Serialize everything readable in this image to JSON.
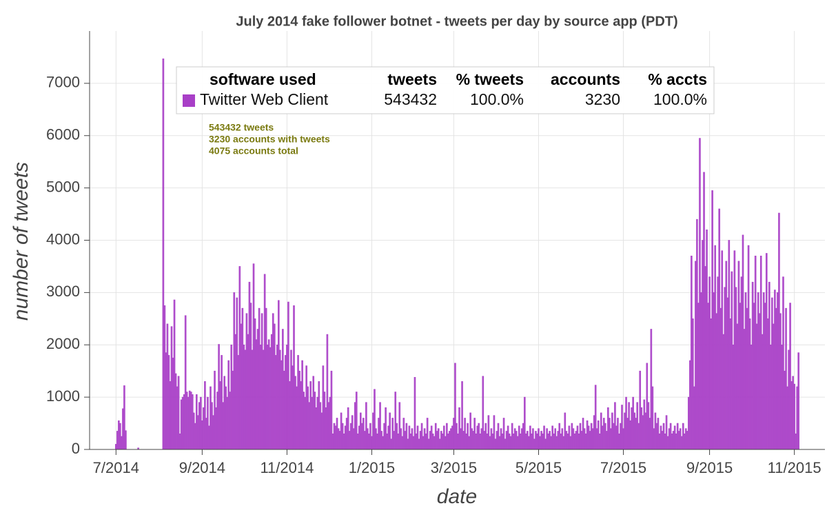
{
  "chart_data": {
    "type": "bar",
    "title": "July 2014 fake follower botnet - tweets per day by source app (PDT)",
    "x_label": "date",
    "y_label": "number of tweets",
    "annotations": [
      "543432 tweets",
      "3230 accounts with tweets",
      "4075 accounts total"
    ],
    "legend": {
      "columns": [
        "software used",
        "tweets",
        "% tweets",
        "accounts",
        "% accts"
      ],
      "rows": [
        [
          "Twitter Web Client",
          543432,
          "100.0%",
          3230,
          "100.0%"
        ]
      ]
    },
    "xlim": [
      -19,
      510
    ],
    "ylim": [
      0,
      8000
    ],
    "xticks": [
      {
        "value": 0,
        "label": "7/2014"
      },
      {
        "value": 62,
        "label": "9/2014"
      },
      {
        "value": 123,
        "label": "11/2014"
      },
      {
        "value": 184,
        "label": "1/2015"
      },
      {
        "value": 243,
        "label": "3/2015"
      },
      {
        "value": 304,
        "label": "5/2015"
      },
      {
        "value": 365,
        "label": "7/2015"
      },
      {
        "value": 427,
        "label": "9/2015"
      },
      {
        "value": 488,
        "label": "11/2015"
      }
    ],
    "yticks": [
      0,
      1000,
      2000,
      3000,
      4000,
      5000,
      6000,
      7000
    ],
    "grid": true,
    "series": [
      {
        "name": "Twitter Web Client",
        "color": "#a83fc7",
        "x": [
          0,
          1,
          2,
          3,
          4,
          5,
          6,
          7,
          8,
          9,
          10,
          11,
          12,
          13,
          14,
          15,
          16,
          17,
          18,
          19,
          20,
          21,
          22,
          23,
          24,
          25,
          26,
          27,
          28,
          29,
          30,
          31,
          32,
          33,
          34,
          35,
          36,
          37,
          38,
          39,
          40,
          41,
          42,
          43,
          44,
          45,
          46,
          47,
          48,
          49,
          50,
          51,
          52,
          53,
          54,
          55,
          56,
          57,
          58,
          59,
          60,
          61,
          62,
          63,
          64,
          65,
          66,
          67,
          68,
          69,
          70,
          71,
          72,
          73,
          74,
          75,
          76,
          77,
          78,
          79,
          80,
          81,
          82,
          83,
          84,
          85,
          86,
          87,
          88,
          89,
          90,
          91,
          92,
          93,
          94,
          95,
          96,
          97,
          98,
          99,
          100,
          101,
          102,
          103,
          104,
          105,
          106,
          107,
          108,
          109,
          110,
          111,
          112,
          113,
          114,
          115,
          116,
          117,
          118,
          119,
          120,
          121,
          122,
          123,
          124,
          125,
          126,
          127,
          128,
          129,
          130,
          131,
          132,
          133,
          134,
          135,
          136,
          137,
          138,
          139,
          140,
          141,
          142,
          143,
          144,
          145,
          146,
          147,
          148,
          149,
          150,
          151,
          152,
          153,
          154,
          155,
          156,
          157,
          158,
          159,
          160,
          161,
          162,
          163,
          164,
          165,
          166,
          167,
          168,
          169,
          170,
          171,
          172,
          173,
          174,
          175,
          176,
          177,
          178,
          179,
          180,
          181,
          182,
          183,
          184,
          185,
          186,
          187,
          188,
          189,
          190,
          191,
          192,
          193,
          194,
          195,
          196,
          197,
          198,
          199,
          200,
          201,
          202,
          203,
          204,
          205,
          206,
          207,
          208,
          209,
          210,
          211,
          212,
          213,
          214,
          215,
          216,
          217,
          218,
          219,
          220,
          221,
          222,
          223,
          224,
          225,
          226,
          227,
          228,
          229,
          230,
          231,
          232,
          233,
          234,
          235,
          236,
          237,
          238,
          239,
          240,
          241,
          242,
          243,
          244,
          245,
          246,
          247,
          248,
          249,
          250,
          251,
          252,
          253,
          254,
          255,
          256,
          257,
          258,
          259,
          260,
          261,
          262,
          263,
          264,
          265,
          266,
          267,
          268,
          269,
          270,
          271,
          272,
          273,
          274,
          275,
          276,
          277,
          278,
          279,
          280,
          281,
          282,
          283,
          284,
          285,
          286,
          287,
          288,
          289,
          290,
          291,
          292,
          293,
          294,
          295,
          296,
          297,
          298,
          299,
          300,
          301,
          302,
          303,
          304,
          305,
          306,
          307,
          308,
          309,
          310,
          311,
          312,
          313,
          314,
          315,
          316,
          317,
          318,
          319,
          320,
          321,
          322,
          323,
          324,
          325,
          326,
          327,
          328,
          329,
          330,
          331,
          332,
          333,
          334,
          335,
          336,
          337,
          338,
          339,
          340,
          341,
          342,
          343,
          344,
          345,
          346,
          347,
          348,
          349,
          350,
          351,
          352,
          353,
          354,
          355,
          356,
          357,
          358,
          359,
          360,
          361,
          362,
          363,
          364,
          365,
          366,
          367,
          368,
          369,
          370,
          371,
          372,
          373,
          374,
          375,
          376,
          377,
          378,
          379,
          380,
          381,
          382,
          383,
          384,
          385,
          386,
          387,
          388,
          389,
          390,
          391,
          392,
          393,
          394,
          395,
          396,
          397,
          398,
          399,
          400,
          401,
          402,
          403,
          404,
          405,
          406,
          407,
          408,
          409,
          410,
          411,
          412,
          413,
          414,
          415,
          416,
          417,
          418,
          419,
          420,
          421,
          422,
          423,
          424,
          425,
          426,
          427,
          428,
          429,
          430,
          431,
          432,
          433,
          434,
          435,
          436,
          437,
          438,
          439,
          440,
          441,
          442,
          443,
          444,
          445,
          446,
          447,
          448,
          449,
          450,
          451,
          452,
          453,
          454,
          455,
          456,
          457,
          458,
          459,
          460,
          461,
          462,
          463,
          464,
          465,
          466,
          467,
          468,
          469,
          470,
          471,
          472,
          473,
          474,
          475,
          476,
          477,
          478,
          479,
          480,
          481,
          482,
          483,
          484,
          485,
          486,
          487,
          488,
          489,
          490,
          491
        ],
        "values": [
          100,
          350,
          550,
          500,
          250,
          780,
          1220,
          360,
          0,
          0,
          0,
          0,
          0,
          0,
          0,
          0,
          30,
          0,
          0,
          0,
          0,
          0,
          0,
          0,
          0,
          0,
          0,
          0,
          0,
          0,
          0,
          0,
          0,
          0,
          7470,
          2750,
          1850,
          2400,
          1800,
          1300,
          2350,
          1750,
          2860,
          1450,
          1200,
          1400,
          300,
          950,
          1000,
          1050,
          2560,
          1100,
          1000,
          1120,
          1100,
          1050,
          700,
          500,
          1050,
          650,
          900,
          1000,
          550,
          800,
          1300,
          600,
          1000,
          450,
          1200,
          900,
          650,
          1500,
          800,
          1100,
          2010,
          1300,
          1800,
          900,
          1400,
          1200,
          1000,
          1700,
          1100,
          2000,
          1500,
          3000,
          2200,
          2900,
          1800,
          3500,
          2400,
          2700,
          2000,
          1900,
          2600,
          2200,
          3200,
          2800,
          1900,
          3550,
          2500,
          2100,
          2300,
          2700,
          2000,
          2600,
          1900,
          3350,
          2700,
          2000,
          2100,
          1950,
          2200,
          2600,
          2400,
          1800,
          2000,
          2850,
          1900,
          1700,
          2300,
          1500,
          1800,
          2000,
          2820,
          1300,
          1900,
          1600,
          2750,
          1400,
          1200,
          1800,
          1500,
          1300,
          1700,
          1100,
          1000,
          1600,
          1200,
          900,
          1300,
          1000,
          1400,
          1100,
          800,
          1000,
          1300,
          900,
          700,
          1600,
          1100,
          800,
          2200,
          900,
          1000,
          1500,
          300,
          500,
          450,
          600,
          400,
          350,
          700,
          500,
          300,
          450,
          600,
          800,
          350,
          500,
          650,
          400,
          900,
          1100,
          300,
          450,
          700,
          500,
          600,
          350,
          900,
          400,
          300,
          500,
          250,
          700,
          1150,
          400,
          300,
          600,
          900,
          350,
          250,
          500,
          800,
          300,
          450,
          700,
          200,
          600,
          350,
          1100,
          500,
          300,
          900,
          400,
          250,
          600,
          350,
          500,
          200,
          450,
          300,
          400,
          250,
          1380,
          300,
          450,
          200,
          350,
          500,
          250,
          400,
          300,
          600,
          200,
          350,
          450,
          300,
          250,
          500,
          350,
          400,
          200,
          350,
          300,
          450,
          250,
          500,
          300,
          350,
          400,
          450,
          600,
          1650,
          500,
          300,
          800,
          400,
          1300,
          350,
          600,
          300,
          500,
          250,
          700,
          400,
          350,
          600,
          300,
          450,
          500,
          300,
          400,
          1400,
          350,
          500,
          300,
          650,
          250,
          400,
          300,
          650,
          200,
          350,
          500,
          250,
          400,
          300,
          600,
          200,
          350,
          450,
          300,
          250,
          500,
          300,
          400,
          350,
          250,
          450,
          300,
          400,
          500,
          1000,
          300,
          350,
          250,
          450,
          300,
          400,
          200,
          350,
          300,
          400,
          250,
          350,
          300,
          450,
          200,
          400,
          300,
          350,
          250,
          450,
          300,
          400,
          250,
          350,
          500,
          300,
          400,
          250,
          700,
          350,
          300,
          450,
          250,
          500,
          400,
          300,
          350,
          450,
          300,
          500,
          350,
          600,
          400,
          300,
          550,
          450,
          350,
          500,
          400,
          650,
          1230,
          400,
          550,
          300,
          700,
          450,
          600,
          500,
          350,
          800,
          600,
          400,
          700,
          500,
          900,
          450,
          600,
          300,
          500,
          850,
          400,
          700,
          1000,
          600,
          900,
          550,
          800,
          1000,
          700,
          600,
          900,
          500,
          1500,
          800,
          650,
          950,
          700,
          1650,
          900,
          600,
          2300,
          1200,
          400,
          700,
          500,
          600,
          300,
          450,
          350,
          500,
          300,
          650,
          250,
          400,
          500,
          300,
          350,
          450,
          300,
          500,
          350,
          400,
          250,
          500,
          300,
          400,
          350,
          1000,
          1700,
          3700,
          2500,
          1200,
          3600,
          4400,
          2800,
          5950,
          3000,
          4000,
          5300,
          3500,
          4200,
          2800,
          3300,
          2500,
          4950,
          3000,
          3900,
          2600,
          3300,
          4600,
          2700,
          3800,
          2200,
          3100,
          3600,
          2900,
          4000,
          2500,
          3400,
          2000,
          3800,
          3100,
          2400,
          3600,
          2800,
          3300,
          4100,
          2300,
          3000,
          2700,
          3900,
          2500,
          2000,
          3200,
          2800,
          3700,
          2400,
          3000,
          2600,
          3700,
          2200,
          3000,
          2800,
          3750,
          2500,
          3200,
          2000,
          2900,
          2400,
          3050,
          2700,
          3000,
          4520,
          2600,
          2000,
          3300,
          1500,
          2700,
          1200,
          1900,
          2800,
          1300,
          1400,
          1250,
          300,
          1200,
          1850
        ]
      }
    ]
  }
}
